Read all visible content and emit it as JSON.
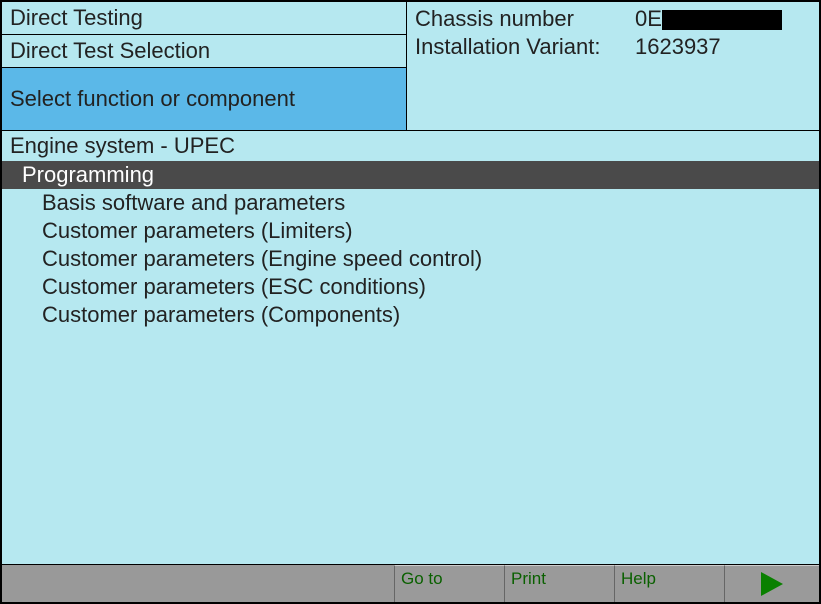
{
  "header": {
    "left": {
      "line1": "Direct Testing",
      "line2": "Direct Test Selection",
      "line3": "Select function or component"
    },
    "right": {
      "chassis_label": "Chassis number",
      "chassis_value": "0E",
      "install_label": "Installation Variant:",
      "install_value": "1623937"
    }
  },
  "section_title": "Engine system - UPEC",
  "items": [
    {
      "label": "Programming",
      "selected": true,
      "level": 1
    },
    {
      "label": "Basis software and parameters",
      "selected": false,
      "level": 2
    },
    {
      "label": "Customer parameters (Limiters)",
      "selected": false,
      "level": 2
    },
    {
      "label": "Customer parameters (Engine speed control)",
      "selected": false,
      "level": 2
    },
    {
      "label": "Customer parameters (ESC conditions)",
      "selected": false,
      "level": 2
    },
    {
      "label": "Customer parameters (Components)",
      "selected": false,
      "level": 2
    }
  ],
  "bottom": {
    "goto": "Go to",
    "print": "Print",
    "help": "Help"
  },
  "colors": {
    "bg": "#b6e8f0",
    "selected_header": "#5bb8e8",
    "selected_item_bg": "#4a4a4a",
    "selected_item_fg": "#ffffff",
    "bottom_bar": "#999999",
    "btn_text": "#0a6000",
    "play_fill": "#0a8000"
  }
}
